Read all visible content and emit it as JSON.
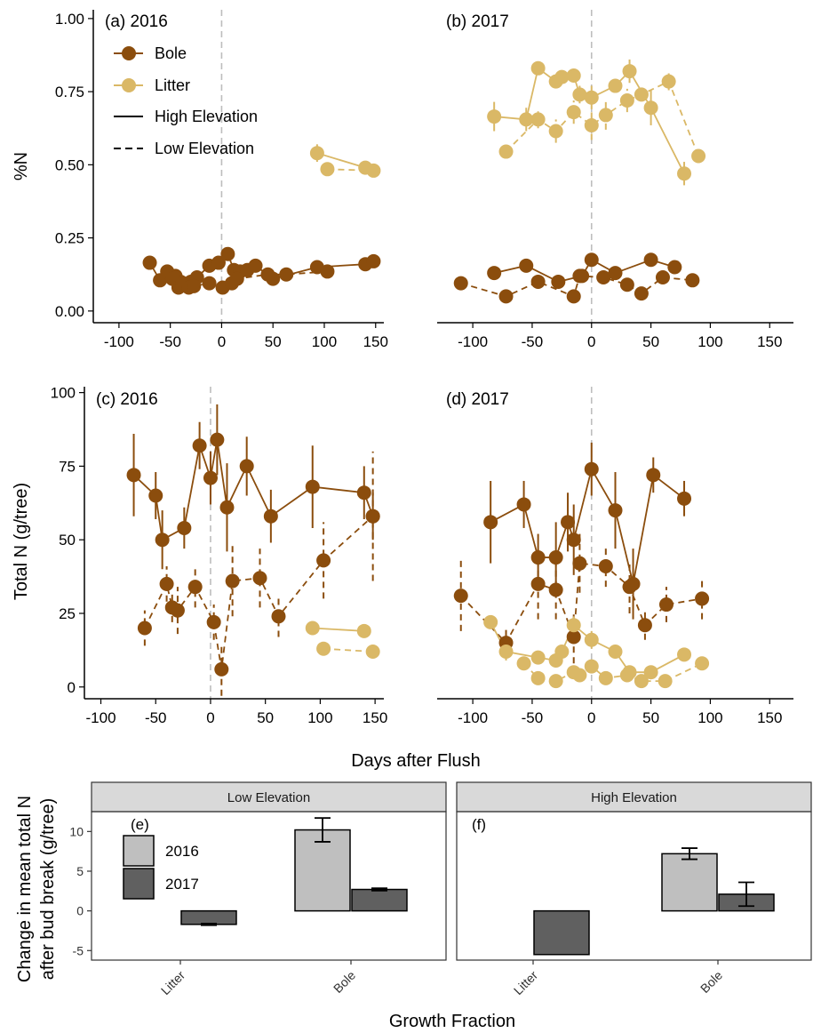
{
  "colors": {
    "bole": "#8b4d0d",
    "litter": "#dab866",
    "bar2016": "#bfbfbf",
    "bar2017": "#606060",
    "flushline": "#bdbdbd",
    "strip": "#d9d9d9"
  },
  "legend": {
    "bole": "Bole",
    "litter": "Litter",
    "high": "High Elevation",
    "low": "Low Elevation",
    "y2016": "2016",
    "y2017": "2017"
  },
  "axes": {
    "top_ylabel": "%N",
    "mid_ylabel": "Total N (g/tree)",
    "mid_xlabel": "Days after Flush",
    "bar_ylabel_line1": "Change in mean total N",
    "bar_ylabel_line2": "after bud break (g/tree)",
    "bar_xlabel": "Growth Fraction",
    "x_ticks": [
      "-100",
      "-50",
      "0",
      "50",
      "100",
      "150"
    ],
    "top_y_ticks": [
      "0.00",
      "0.25",
      "0.50",
      "0.75",
      "1.00"
    ],
    "mid_y_ticks": [
      "0",
      "25",
      "50",
      "75",
      "100"
    ],
    "bar_y_ticks": [
      "-5",
      "0",
      "5",
      "10"
    ],
    "bar_categories": [
      "Litter",
      "Bole"
    ]
  },
  "chart_data": [
    {
      "type": "line",
      "panel": "(a) 2016",
      "ylabel": "%N",
      "xlim": [
        -125,
        158
      ],
      "ylim": [
        -0.04,
        1.03
      ],
      "series": [
        {
          "name": "Bole High Elevation",
          "x": [
            -70,
            -60,
            -53,
            -45,
            -40,
            -34,
            -30,
            -24,
            -12,
            -3,
            6,
            12,
            18,
            25,
            33,
            50,
            93,
            140,
            148
          ],
          "y": [
            0.165,
            0.105,
            0.135,
            0.12,
            0.1,
            0.09,
            0.1,
            0.115,
            0.155,
            0.165,
            0.195,
            0.14,
            0.135,
            0.14,
            0.155,
            0.11,
            0.15,
            0.16,
            0.17
          ],
          "err": [
            0,
            0,
            0,
            0,
            0,
            0,
            0,
            0,
            0,
            0,
            0.02,
            0,
            0,
            0,
            0,
            0,
            0,
            0,
            0
          ]
        },
        {
          "name": "Bole Low Elevation",
          "x": [
            -48,
            -42,
            -38,
            -32,
            -27,
            -12,
            1,
            10,
            15,
            45,
            63,
            103
          ],
          "y": [
            0.11,
            0.08,
            0.095,
            0.08,
            0.085,
            0.095,
            0.08,
            0.095,
            0.11,
            0.125,
            0.125,
            0.135
          ],
          "err": [
            0,
            0,
            0,
            0,
            0,
            0,
            0,
            0,
            0,
            0,
            0,
            0
          ]
        },
        {
          "name": "Litter High Elevation",
          "x": [
            93,
            140
          ],
          "y": [
            0.54,
            0.49
          ],
          "err": [
            0.03,
            0.02
          ]
        },
        {
          "name": "Litter Low Elevation",
          "x": [
            103,
            148
          ],
          "y": [
            0.485,
            0.48
          ],
          "err": [
            0.01,
            0.01
          ]
        }
      ]
    },
    {
      "type": "line",
      "panel": "(b) 2017",
      "ylabel": "",
      "xlim": [
        -130,
        170
      ],
      "ylim": [
        -0.04,
        1.03
      ],
      "series": [
        {
          "name": "Bole High Elevation",
          "x": [
            -82,
            -55,
            -28,
            -8,
            0,
            20,
            50,
            70
          ],
          "y": [
            0.13,
            0.155,
            0.1,
            0.12,
            0.175,
            0.13,
            0.175,
            0.15
          ],
          "err": [
            0,
            0,
            0,
            0,
            0.02,
            0,
            0,
            0
          ]
        },
        {
          "name": "Bole Low Elevation",
          "x": [
            -110,
            -72,
            -45,
            -15,
            -10,
            10,
            30,
            42,
            60,
            85
          ],
          "y": [
            0.095,
            0.05,
            0.1,
            0.05,
            0.12,
            0.115,
            0.09,
            0.06,
            0.115,
            0.105
          ],
          "err": [
            0,
            0,
            0,
            0,
            0,
            0,
            0,
            0,
            0,
            0
          ]
        },
        {
          "name": "Litter High Elevation",
          "x": [
            -82,
            -55,
            -45,
            -30,
            -25,
            -15,
            -10,
            0,
            20,
            32,
            50,
            78
          ],
          "y": [
            0.665,
            0.655,
            0.83,
            0.785,
            0.8,
            0.805,
            0.74,
            0.73,
            0.77,
            0.82,
            0.695,
            0.47
          ],
          "err": [
            0.05,
            0.04,
            0,
            0,
            0,
            0,
            0.03,
            0.04,
            0,
            0.04,
            0.06,
            0.04
          ]
        },
        {
          "name": "Litter Low Elevation",
          "x": [
            -72,
            -45,
            -30,
            -15,
            0,
            12,
            30,
            42,
            65,
            90
          ],
          "y": [
            0.545,
            0.655,
            0.615,
            0.68,
            0.635,
            0.67,
            0.72,
            0.74,
            0.785,
            0.53
          ],
          "err": [
            0,
            0.03,
            0.04,
            0.04,
            0.05,
            0.05,
            0.04,
            0,
            0.03,
            0.02
          ]
        }
      ]
    },
    {
      "type": "line",
      "panel": "(c) 2016",
      "ylabel": "Total N (g/tree)",
      "xlim": [
        -115,
        158
      ],
      "ylim": [
        -4,
        102
      ],
      "series": [
        {
          "name": "Bole High Elevation",
          "x": [
            -70,
            -50,
            -44,
            -24,
            -10,
            0,
            6,
            15,
            33,
            55,
            93,
            140,
            148
          ],
          "y": [
            72,
            65,
            50,
            54,
            82,
            71,
            84,
            61,
            75,
            58,
            68,
            66,
            58
          ],
          "err": [
            14,
            8,
            10,
            7,
            8,
            9,
            12,
            15,
            10,
            9,
            14,
            9,
            8
          ]
        },
        {
          "name": "Bole Low Elevation",
          "x": [
            -60,
            -40,
            -35,
            -30,
            -14,
            3,
            10,
            20,
            45,
            62,
            103,
            148
          ],
          "y": [
            20,
            35,
            27,
            26,
            34,
            22,
            6,
            36,
            37,
            24,
            43,
            58
          ],
          "err": [
            6,
            6,
            5,
            8,
            7,
            6,
            9,
            12,
            10,
            7,
            13,
            22
          ]
        },
        {
          "name": "Litter High Elevation",
          "x": [
            93,
            140
          ],
          "y": [
            20,
            19
          ],
          "err": [
            2,
            2
          ]
        },
        {
          "name": "Litter Low Elevation",
          "x": [
            103,
            148
          ],
          "y": [
            13,
            12
          ],
          "err": [
            2,
            2
          ]
        }
      ]
    },
    {
      "type": "line",
      "panel": "(d) 2017",
      "ylabel": "",
      "xlim": [
        -130,
        170
      ],
      "ylim": [
        -4,
        102
      ],
      "series": [
        {
          "name": "Bole High Elevation",
          "x": [
            -85,
            -57,
            -45,
            -30,
            -20,
            -15,
            0,
            20,
            35,
            52,
            78
          ],
          "y": [
            56,
            62,
            44,
            44,
            56,
            50,
            74,
            60,
            35,
            72,
            64
          ],
          "err": [
            14,
            8,
            8,
            12,
            10,
            12,
            9,
            13,
            12,
            6,
            6
          ]
        },
        {
          "name": "Bole Low Elevation",
          "x": [
            -110,
            -72,
            -45,
            -30,
            -15,
            -10,
            12,
            32,
            45,
            63,
            93
          ],
          "y": [
            31,
            15,
            35,
            33,
            17,
            42,
            41,
            34,
            21,
            28,
            30
          ],
          "err": [
            12,
            5,
            12,
            10,
            9,
            10,
            7,
            9,
            5,
            6,
            7
          ]
        },
        {
          "name": "Litter High Elevation",
          "x": [
            -85,
            -72,
            -45,
            -30,
            -25,
            -15,
            0,
            20,
            32,
            50,
            78
          ],
          "y": [
            22,
            12,
            10,
            9,
            12,
            21,
            16,
            12,
            5,
            5,
            11
          ],
          "err": [
            2,
            3,
            2,
            2,
            2,
            3,
            3,
            2,
            1,
            1,
            2
          ]
        },
        {
          "name": "Litter Low Elevation",
          "x": [
            -57,
            -45,
            -30,
            -15,
            -10,
            0,
            12,
            30,
            42,
            62,
            93
          ],
          "y": [
            8,
            3,
            2,
            5,
            4,
            7,
            3,
            4,
            2,
            2,
            8
          ],
          "err": [
            1,
            1,
            1,
            1,
            1,
            1,
            1,
            1,
            1,
            1,
            1
          ]
        }
      ]
    },
    {
      "type": "bar",
      "panel": "(e)",
      "strip": "Low Elevation",
      "categories": [
        "Litter",
        "Bole"
      ],
      "ylabel": "Change in mean total N after bud break (g/tree)",
      "ylim": [
        -6.2,
        12.5
      ],
      "series": [
        {
          "name": "2016",
          "values": [
            null,
            10.2
          ],
          "err": [
            null,
            1.5
          ]
        },
        {
          "name": "2017",
          "values": [
            -1.7,
            2.7
          ],
          "err": [
            0.1,
            0.15
          ]
        }
      ]
    },
    {
      "type": "bar",
      "panel": "(f)",
      "strip": "High Elevation",
      "categories": [
        "Litter",
        "Bole"
      ],
      "ylim": [
        -6.2,
        12.5
      ],
      "series": [
        {
          "name": "2016",
          "values": [
            null,
            7.2
          ],
          "err": [
            null,
            0.7
          ]
        },
        {
          "name": "2017",
          "values": [
            -5.5,
            2.1
          ],
          "err": [
            0,
            1.5
          ]
        }
      ]
    }
  ]
}
